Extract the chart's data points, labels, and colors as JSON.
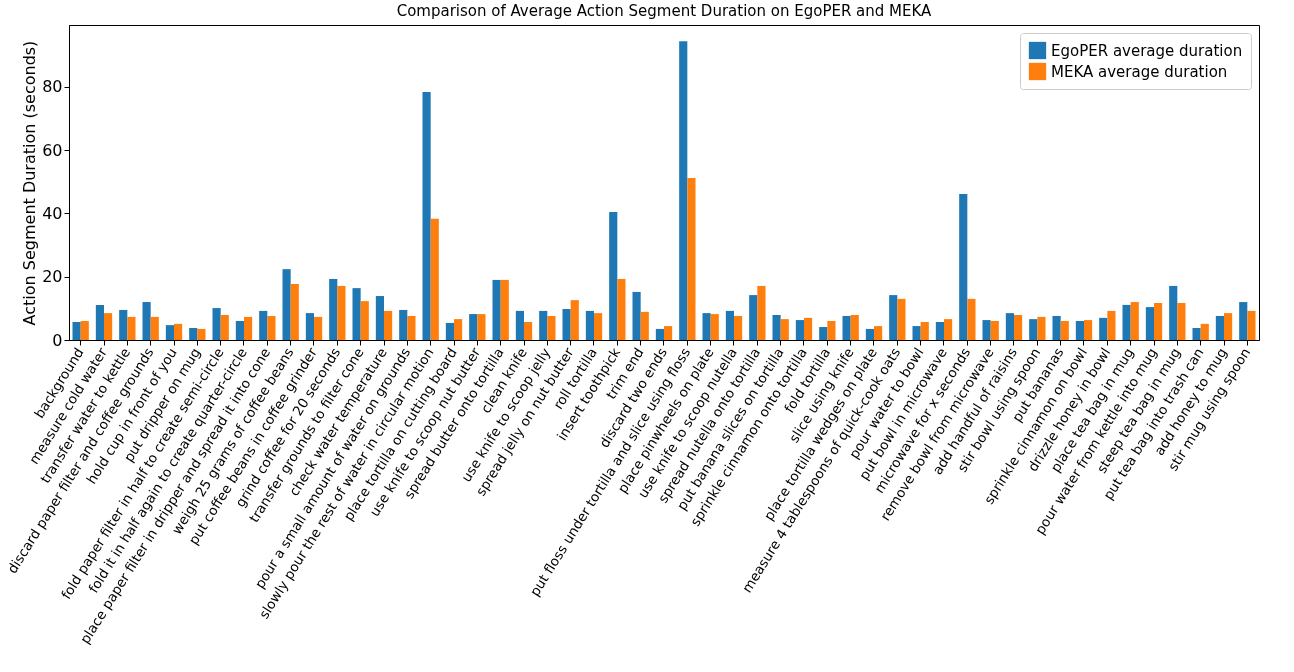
{
  "chart_data": {
    "type": "bar",
    "title": "Comparison of Average Action Segment Duration on EgoPER and MEKA",
    "ylabel": "Action Segment Duration (seconds)",
    "categories": [
      "background",
      "measure cold water",
      "transfer water to kettle",
      "discard paper filter and coffee grounds",
      "hold cup in front of you",
      "put dripper on mug",
      "fold paper filter in half to create semi-circle",
      "fold it in half again to create quarter-circle",
      "place paper filter in dripper and spread it into cone",
      "weigh 25 grams of coffee beans",
      "put coffee beans in coffee grinder",
      "grind coffee for 20 seconds",
      "transfer grounds to filter cone",
      "check water temperature",
      "pour a small amount of water on grounds",
      "slowly pour the rest of water in circular motion",
      "place tortilla on cutting board",
      "use knife to scoop nut butter",
      "spread butter onto tortilla",
      "clean knife",
      "use knife to scoop jelly",
      "spread jelly on nut butter",
      "roll tortilla",
      "insert toothpick",
      "trim end",
      "discard two ends",
      "put floss under tortilla and slice using floss",
      "place pinwheels on plate",
      "use knife to scoop nutella",
      "spread nutella onto tortilla",
      "put banana slices on tortilla",
      "sprinkle cinnamon onto tortilla",
      "fold tortilla",
      "slice using knife",
      "place tortilla wedges on plate",
      "measure 4 tablespoons of quick-cook oats",
      "pour water to bowl",
      "put bowl in microwave",
      "microwave for x seconds",
      "remove bowl from microwave",
      "add handful of raisins",
      "stir bowl using spoon",
      "put bananas",
      "sprinkle cinnamon on bowl",
      "drizzle honey in bowl",
      "place tea bag in mug",
      "pour water from kettle into mug",
      "steep tea bag in mug",
      "put tea bag into trash can",
      "add honey to mug",
      "stir mug using spoon"
    ],
    "series": [
      {
        "name": "EgoPER average duration",
        "color": "#1f77b4",
        "values": [
          5.7,
          11.1,
          9.5,
          12.0,
          4.7,
          3.8,
          10.1,
          6.0,
          9.2,
          22.4,
          8.5,
          19.3,
          16.4,
          13.9,
          9.5,
          78.4,
          5.4,
          8.2,
          19.0,
          9.2,
          9.2,
          9.8,
          9.2,
          40.5,
          15.2,
          3.5,
          94.5,
          8.5,
          9.2,
          14.2,
          7.9,
          6.3,
          4.1,
          7.6,
          3.5,
          14.2,
          4.4,
          5.7,
          46.2,
          6.3,
          8.5,
          6.6,
          7.6,
          6.0,
          7.0,
          11.1,
          10.4,
          17.1,
          3.8,
          7.6,
          12.0
        ]
      },
      {
        "name": "MEKA average duration",
        "color": "#ff7f0e",
        "values": [
          6.0,
          8.5,
          7.3,
          7.3,
          5.1,
          3.5,
          7.9,
          7.3,
          7.6,
          17.7,
          7.3,
          17.1,
          12.3,
          9.2,
          7.6,
          38.3,
          6.6,
          8.2,
          19.0,
          5.7,
          7.6,
          12.6,
          8.5,
          19.3,
          8.9,
          4.4,
          51.2,
          8.2,
          7.6,
          17.1,
          6.6,
          7.0,
          6.0,
          7.9,
          4.4,
          13.0,
          5.7,
          6.6,
          13.0,
          6.0,
          7.9,
          7.3,
          6.0,
          6.3,
          9.2,
          12.0,
          11.7,
          11.7,
          5.1,
          8.5,
          9.2
        ]
      }
    ],
    "ylim": [
      0,
      99.6
    ],
    "yticks": [
      0,
      20,
      40,
      60,
      80
    ],
    "legend": "top right"
  }
}
